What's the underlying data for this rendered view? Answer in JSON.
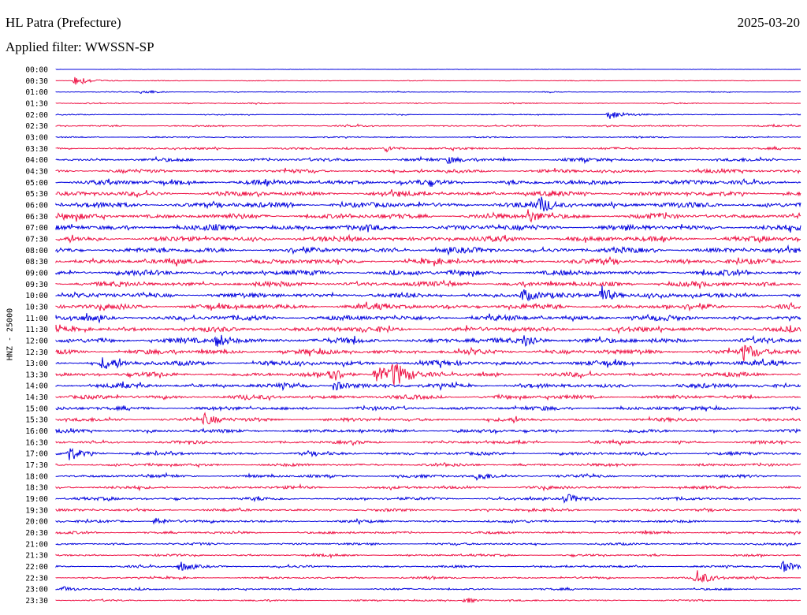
{
  "header": {
    "station": "HL Patra (Prefecture)",
    "filter": "Applied filter: WWSSN-SP",
    "date": "2025-03-20"
  },
  "chart_data": {
    "type": "line",
    "ylabel": "HNZ - 25000",
    "row_labels": [
      "00:00",
      "00:30",
      "01:00",
      "01:30",
      "02:00",
      "02:30",
      "03:00",
      "03:30",
      "04:00",
      "04:30",
      "05:00",
      "05:30",
      "06:00",
      "06:30",
      "07:00",
      "07:30",
      "08:00",
      "08:30",
      "09:00",
      "09:30",
      "10:00",
      "10:30",
      "11:00",
      "11:30",
      "12:00",
      "12:30",
      "13:00",
      "13:30",
      "14:00",
      "14:30",
      "15:00",
      "15:30",
      "16:00",
      "16:30",
      "17:00",
      "17:30",
      "18:00",
      "18:30",
      "19:00",
      "19:30",
      "20:00",
      "20:30",
      "21:00",
      "21:30",
      "22:00",
      "22:30",
      "23:00",
      "23:30"
    ],
    "row_minutes": 30,
    "colors": {
      "even": "#0000dd",
      "odd": "#ee1144"
    },
    "noise_level": [
      0.3,
      0.5,
      0.6,
      0.8,
      0.7,
      1.1,
      0.9,
      1.5,
      2.2,
      2.4,
      3.4,
      3.3,
      3.8,
      3.6,
      3.8,
      3.6,
      3.7,
      3.5,
      3.5,
      3.5,
      3.4,
      3.6,
      3.6,
      3.4,
      3.6,
      3.4,
      3.4,
      3.0,
      3.0,
      2.8,
      2.6,
      2.4,
      2.4,
      2.2,
      2.2,
      2.0,
      2.0,
      2.0,
      2.0,
      1.8,
      1.8,
      1.7,
      1.6,
      1.5,
      1.5,
      1.4,
      1.3,
      1.1
    ],
    "events": [
      {
        "row": 1,
        "minute": 0.8,
        "amplitude": 7
      },
      {
        "row": 2,
        "minute": 3.5,
        "amplitude": 3
      },
      {
        "row": 4,
        "minute": 22.3,
        "amplitude": 7
      },
      {
        "row": 7,
        "minute": 13.3,
        "amplitude": 4
      },
      {
        "row": 8,
        "minute": 15.8,
        "amplitude": 4
      },
      {
        "row": 12,
        "minute": 19.5,
        "amplitude": 9
      },
      {
        "row": 13,
        "minute": 19.0,
        "amplitude": 8
      },
      {
        "row": 20,
        "minute": 21.9,
        "amplitude": 14
      },
      {
        "row": 20,
        "minute": 18.8,
        "amplitude": 8
      },
      {
        "row": 24,
        "minute": 6.5,
        "amplitude": 9
      },
      {
        "row": 24,
        "minute": 18.9,
        "amplitude": 8
      },
      {
        "row": 25,
        "minute": 27.7,
        "amplitude": 11
      },
      {
        "row": 26,
        "minute": 1.9,
        "amplitude": 8
      },
      {
        "row": 27,
        "minute": 11.0,
        "amplitude": 11
      },
      {
        "row": 27,
        "minute": 12.9,
        "amplitude": 13
      },
      {
        "row": 27,
        "minute": 13.6,
        "amplitude": 15
      },
      {
        "row": 28,
        "minute": 11.2,
        "amplitude": 7
      },
      {
        "row": 31,
        "minute": 6.0,
        "amplitude": 7
      },
      {
        "row": 34,
        "minute": 0.5,
        "amplitude": 9
      },
      {
        "row": 36,
        "minute": 17.0,
        "amplitude": 6
      },
      {
        "row": 38,
        "minute": 20.5,
        "amplitude": 6
      },
      {
        "row": 40,
        "minute": 4.0,
        "amplitude": 5
      },
      {
        "row": 44,
        "minute": 5.0,
        "amplitude": 6
      },
      {
        "row": 44,
        "minute": 29.3,
        "amplitude": 7
      },
      {
        "row": 45,
        "minute": 25.8,
        "amplitude": 11
      },
      {
        "row": 46,
        "minute": 0.3,
        "amplitude": 3
      },
      {
        "row": 47,
        "minute": 16.5,
        "amplitude": 4
      }
    ]
  }
}
